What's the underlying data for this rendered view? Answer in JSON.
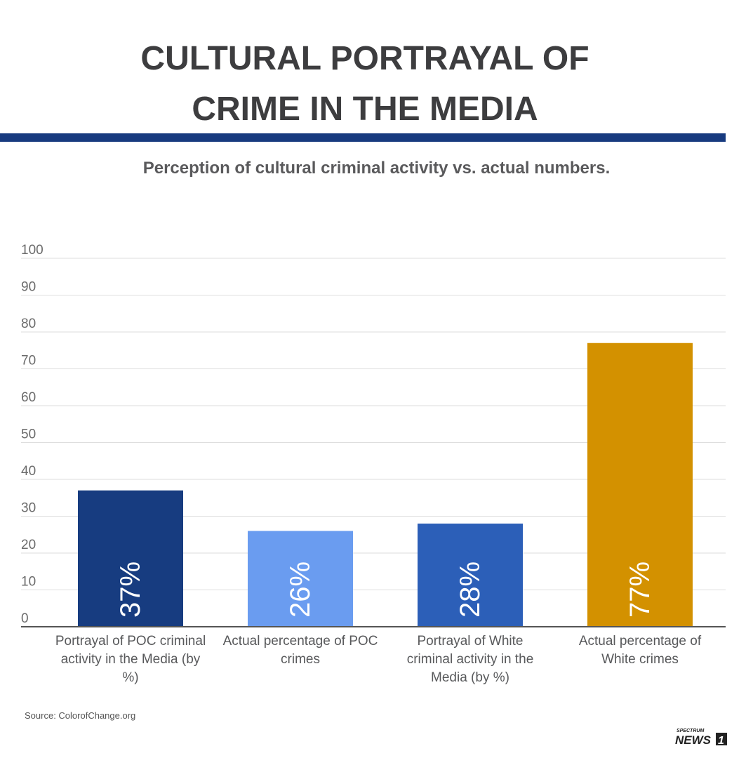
{
  "header": {
    "title_line1": "CULTURAL PORTRAYAL OF",
    "title_line2": "CRIME IN THE MEDIA",
    "subtitle": "Perception of cultural criminal activity vs. actual numbers."
  },
  "colors": {
    "rule": "#173a7f",
    "grid": "#dedede",
    "axis": "#555555",
    "tick_text": "#6b6b6b",
    "label_text": "#58595b"
  },
  "chart_data": {
    "type": "bar",
    "title": "CULTURAL PORTRAYAL OF CRIME IN THE MEDIA",
    "subtitle": "Perception of cultural criminal activity vs. actual numbers.",
    "categories": [
      "Portrayal of POC criminal activity in the Media (by %)",
      "Actual percentage of POC crimes",
      "Portrayal of White criminal activity in the Media (by %)",
      "Actual percentage of White crimes"
    ],
    "category_lines": [
      [
        "Portrayal of POC criminal",
        "activity in the Media (by",
        "%)"
      ],
      [
        "Actual percentage of POC",
        "crimes"
      ],
      [
        "Portrayal of White",
        "criminal activity in the",
        "Media (by %)"
      ],
      [
        "Actual percentage of",
        "White crimes"
      ]
    ],
    "values": [
      37,
      26,
      28,
      77
    ],
    "data_labels": [
      "37%",
      "26%",
      "28%",
      "77%"
    ],
    "bar_colors": [
      "#173c80",
      "#6a9cf0",
      "#2c5fb8",
      "#d39100"
    ],
    "ylim": [
      0,
      100
    ],
    "yticks": [
      0,
      10,
      20,
      30,
      40,
      50,
      60,
      70,
      80,
      90,
      100
    ],
    "grid": true,
    "legend": "none"
  },
  "footer": {
    "source": "Source: ColorofChange.org",
    "logo_top": "SPECTRUM",
    "logo_main": "NEWS",
    "logo_num": "1"
  }
}
